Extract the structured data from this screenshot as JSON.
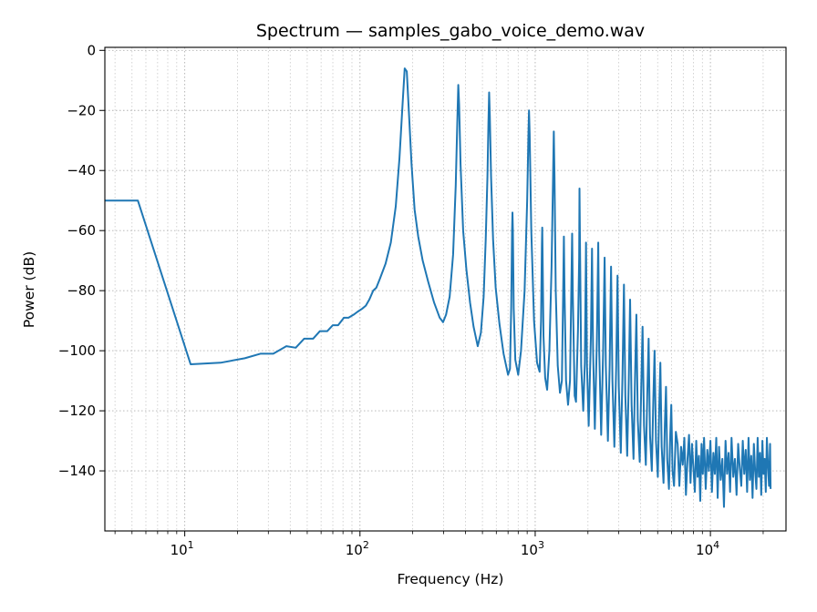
{
  "chart_data": {
    "type": "line",
    "title": "Spectrum — samples_gabo_voice_demo.wav",
    "xlabel": "Frequency (Hz)",
    "ylabel": "Power (dB)",
    "xscale": "log",
    "xlim": [
      3.5,
      27000
    ],
    "ylim": [
      -160,
      1
    ],
    "grid": true,
    "grid_minor": true,
    "x_major_ticks": [
      {
        "value": 10,
        "base": "10",
        "exp": "1"
      },
      {
        "value": 100,
        "base": "10",
        "exp": "2"
      },
      {
        "value": 1000,
        "base": "10",
        "exp": "3"
      },
      {
        "value": 10000,
        "base": "10",
        "exp": "4"
      }
    ],
    "y_ticks": [
      {
        "value": 0,
        "label": "0"
      },
      {
        "value": -20,
        "label": "−20"
      },
      {
        "value": -40,
        "label": "−40"
      },
      {
        "value": -60,
        "label": "−60"
      },
      {
        "value": -80,
        "label": "−80"
      },
      {
        "value": -100,
        "label": "−100"
      },
      {
        "value": -120,
        "label": "−120"
      },
      {
        "value": -140,
        "label": "−140"
      }
    ],
    "line_color": "#1f77b4",
    "series": [
      {
        "points": [
          [
            3.5,
            -50
          ],
          [
            5.4,
            -50
          ],
          [
            10.8,
            -104.5
          ],
          [
            16,
            -104
          ],
          [
            22,
            -102.5
          ],
          [
            27,
            -101
          ],
          [
            32,
            -101
          ],
          [
            38,
            -98.5
          ],
          [
            43,
            -99
          ],
          [
            48,
            -96
          ],
          [
            54,
            -96
          ],
          [
            59,
            -93.5
          ],
          [
            65,
            -93.5
          ],
          [
            70,
            -91.5
          ],
          [
            75,
            -91.5
          ],
          [
            81,
            -89
          ],
          [
            86,
            -89
          ],
          [
            92,
            -88
          ],
          [
            97,
            -87
          ],
          [
            103,
            -86
          ],
          [
            108,
            -85
          ],
          [
            113,
            -83
          ],
          [
            119,
            -80
          ],
          [
            124,
            -79
          ],
          [
            130,
            -76
          ],
          [
            140,
            -71
          ],
          [
            150,
            -64
          ],
          [
            160,
            -52
          ],
          [
            168,
            -36
          ],
          [
            175,
            -18
          ],
          [
            180,
            -6
          ],
          [
            185,
            -7
          ],
          [
            190,
            -20
          ],
          [
            197,
            -38
          ],
          [
            205,
            -53
          ],
          [
            215,
            -62
          ],
          [
            228,
            -70
          ],
          [
            245,
            -77
          ],
          [
            265,
            -84
          ],
          [
            285,
            -89
          ],
          [
            298,
            -90.5
          ],
          [
            310,
            -88
          ],
          [
            325,
            -82
          ],
          [
            340,
            -68
          ],
          [
            352,
            -45
          ],
          [
            360,
            -22
          ],
          [
            364,
            -11.5
          ],
          [
            368,
            -18
          ],
          [
            375,
            -38
          ],
          [
            388,
            -60
          ],
          [
            405,
            -73
          ],
          [
            425,
            -84
          ],
          [
            445,
            -92
          ],
          [
            470,
            -98.5
          ],
          [
            490,
            -94
          ],
          [
            508,
            -82
          ],
          [
            522,
            -63
          ],
          [
            534,
            -42
          ],
          [
            541,
            -24
          ],
          [
            546,
            -14
          ],
          [
            551,
            -22
          ],
          [
            560,
            -42
          ],
          [
            575,
            -63
          ],
          [
            595,
            -79
          ],
          [
            625,
            -91
          ],
          [
            660,
            -101
          ],
          [
            700,
            -108
          ],
          [
            718,
            -106
          ],
          [
            730,
            -85
          ],
          [
            738,
            -60
          ],
          [
            742,
            -54
          ],
          [
            746,
            -60
          ],
          [
            754,
            -86
          ],
          [
            770,
            -103
          ],
          [
            800,
            -108
          ],
          [
            830,
            -100
          ],
          [
            870,
            -80
          ],
          [
            900,
            -50
          ],
          [
            915,
            -28
          ],
          [
            922,
            -20
          ],
          [
            930,
            -28
          ],
          [
            950,
            -60
          ],
          [
            985,
            -90
          ],
          [
            1025,
            -104
          ],
          [
            1060,
            -107
          ],
          [
            1080,
            -90
          ],
          [
            1092,
            -65
          ],
          [
            1097,
            -59
          ],
          [
            1102,
            -68
          ],
          [
            1115,
            -95
          ],
          [
            1140,
            -109
          ],
          [
            1170,
            -113
          ],
          [
            1205,
            -100
          ],
          [
            1240,
            -72
          ],
          [
            1265,
            -42
          ],
          [
            1277,
            -27
          ],
          [
            1289,
            -42
          ],
          [
            1310,
            -80
          ],
          [
            1345,
            -105
          ],
          [
            1385,
            -114
          ],
          [
            1420,
            -110
          ],
          [
            1445,
            -80
          ],
          [
            1458,
            -62
          ],
          [
            1470,
            -80
          ],
          [
            1500,
            -110
          ],
          [
            1540,
            -118
          ],
          [
            1580,
            -110
          ],
          [
            1612,
            -75
          ],
          [
            1625,
            -61
          ],
          [
            1640,
            -82
          ],
          [
            1680,
            -115
          ],
          [
            1710,
            -117
          ],
          [
            1755,
            -93
          ],
          [
            1782,
            -69
          ],
          [
            1790,
            -46
          ],
          [
            1800,
            -62
          ],
          [
            1830,
            -105
          ],
          [
            1880,
            -120
          ],
          [
            1920,
            -104
          ],
          [
            1950,
            -64
          ],
          [
            1975,
            -105
          ],
          [
            2020,
            -125
          ],
          [
            2080,
            -95
          ],
          [
            2110,
            -66
          ],
          [
            2140,
            -100
          ],
          [
            2190,
            -126
          ],
          [
            2250,
            -96
          ],
          [
            2290,
            -64
          ],
          [
            2320,
            -100
          ],
          [
            2380,
            -128
          ],
          [
            2440,
            -101
          ],
          [
            2490,
            -69
          ],
          [
            2530,
            -105
          ],
          [
            2600,
            -130
          ],
          [
            2660,
            -105
          ],
          [
            2710,
            -72
          ],
          [
            2760,
            -110
          ],
          [
            2830,
            -132
          ],
          [
            2900,
            -105
          ],
          [
            2950,
            -75
          ],
          [
            3000,
            -112
          ],
          [
            3080,
            -134
          ],
          [
            3150,
            -108
          ],
          [
            3210,
            -78
          ],
          [
            3270,
            -115
          ],
          [
            3350,
            -135
          ],
          [
            3420,
            -110
          ],
          [
            3480,
            -83
          ],
          [
            3550,
            -118
          ],
          [
            3640,
            -136
          ],
          [
            3710,
            -110
          ],
          [
            3780,
            -88
          ],
          [
            3850,
            -123
          ],
          [
            3950,
            -137
          ],
          [
            4030,
            -112
          ],
          [
            4100,
            -92
          ],
          [
            4180,
            -125
          ],
          [
            4280,
            -138
          ],
          [
            4360,
            -115
          ],
          [
            4440,
            -96
          ],
          [
            4520,
            -128
          ],
          [
            4630,
            -140
          ],
          [
            4720,
            -117
          ],
          [
            4800,
            -100
          ],
          [
            4890,
            -130
          ],
          [
            5010,
            -142
          ],
          [
            5100,
            -120
          ],
          [
            5180,
            -104
          ],
          [
            5270,
            -132
          ],
          [
            5400,
            -144
          ],
          [
            5500,
            -124
          ],
          [
            5580,
            -112
          ],
          [
            5670,
            -136
          ],
          [
            5800,
            -146
          ],
          [
            5900,
            -128
          ],
          [
            5980,
            -118
          ],
          [
            6080,
            -140
          ],
          [
            6200,
            -145
          ],
          [
            6350,
            -127
          ],
          [
            6500,
            -131
          ],
          [
            6650,
            -145
          ],
          [
            6800,
            -132
          ],
          [
            6950,
            -138
          ],
          [
            7100,
            -129
          ],
          [
            7250,
            -148
          ],
          [
            7400,
            -136
          ],
          [
            7550,
            -128
          ],
          [
            7700,
            -144
          ],
          [
            7850,
            -131
          ],
          [
            8000,
            -139
          ],
          [
            8150,
            -147
          ],
          [
            8300,
            -130
          ],
          [
            8450,
            -142
          ],
          [
            8600,
            -135
          ],
          [
            8750,
            -150
          ],
          [
            8900,
            -131
          ],
          [
            9050,
            -141
          ],
          [
            9200,
            -129
          ],
          [
            9400,
            -146
          ],
          [
            9600,
            -133
          ],
          [
            9800,
            -140
          ],
          [
            10000,
            -130
          ],
          [
            10200,
            -147
          ],
          [
            10400,
            -134
          ],
          [
            10600,
            -141
          ],
          [
            10800,
            -129
          ],
          [
            11000,
            -149
          ],
          [
            11200,
            -132
          ],
          [
            11450,
            -143
          ],
          [
            11700,
            -136
          ],
          [
            11950,
            -152
          ],
          [
            12200,
            -130
          ],
          [
            12450,
            -141
          ],
          [
            12700,
            -134
          ],
          [
            12950,
            -147
          ],
          [
            13200,
            -129
          ],
          [
            13500,
            -142
          ],
          [
            13800,
            -136
          ],
          [
            14100,
            -148
          ],
          [
            14400,
            -131
          ],
          [
            14700,
            -139
          ],
          [
            15000,
            -145
          ],
          [
            15300,
            -130
          ],
          [
            15600,
            -141
          ],
          [
            15900,
            -133
          ],
          [
            16200,
            -147
          ],
          [
            16500,
            -129
          ],
          [
            16800,
            -143
          ],
          [
            17100,
            -135
          ],
          [
            17400,
            -149
          ],
          [
            17700,
            -131
          ],
          [
            18000,
            -140
          ],
          [
            18300,
            -146
          ],
          [
            18600,
            -129
          ],
          [
            18900,
            -142
          ],
          [
            19200,
            -134
          ],
          [
            19500,
            -148
          ],
          [
            19800,
            -130
          ],
          [
            20100,
            -141
          ],
          [
            20400,
            -136
          ],
          [
            20700,
            -147
          ],
          [
            21000,
            -129
          ],
          [
            21300,
            -138
          ],
          [
            21600,
            -145
          ],
          [
            21900,
            -131
          ],
          [
            22050,
            -146
          ]
        ]
      }
    ]
  }
}
